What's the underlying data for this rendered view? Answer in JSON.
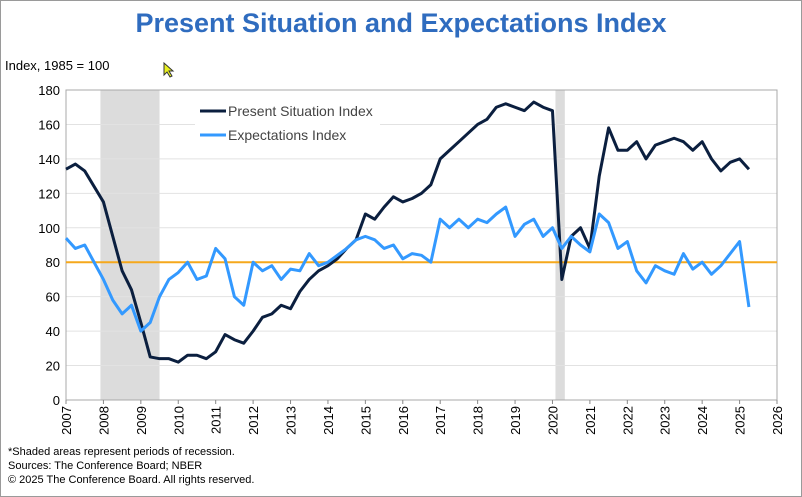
{
  "chart_data": {
    "type": "line",
    "title": "Present Situation and Expectations Index",
    "ylabel": "Index, 1985 = 100",
    "xlabel": "",
    "ylim": [
      0,
      180
    ],
    "yticks": [
      0,
      20,
      40,
      60,
      80,
      100,
      120,
      140,
      160,
      180
    ],
    "xlim": [
      2007,
      2026
    ],
    "xticks": [
      "2007",
      "2008",
      "2009",
      "2010",
      "2011",
      "2012",
      "2013",
      "2014",
      "2015",
      "2016",
      "2017",
      "2018",
      "2019",
      "2020",
      "2021",
      "2022",
      "2023",
      "2024",
      "2025",
      "2026"
    ],
    "grid": true,
    "legend_placement": "top-center",
    "reference_line": {
      "value": 80,
      "color": "#f5a81c"
    },
    "recessions": [
      [
        2007.92,
        2009.5
      ],
      [
        2020.08,
        2020.33
      ]
    ],
    "x": [
      2007,
      2007.25,
      2007.5,
      2007.75,
      2008,
      2008.25,
      2008.5,
      2008.75,
      2009,
      2009.25,
      2009.5,
      2009.75,
      2010,
      2010.25,
      2010.5,
      2010.75,
      2011,
      2011.25,
      2011.5,
      2011.75,
      2012,
      2012.25,
      2012.5,
      2012.75,
      2013,
      2013.25,
      2013.5,
      2013.75,
      2014,
      2014.25,
      2014.5,
      2014.75,
      2015,
      2015.25,
      2015.5,
      2015.75,
      2016,
      2016.25,
      2016.5,
      2016.75,
      2017,
      2017.25,
      2017.5,
      2017.75,
      2018,
      2018.25,
      2018.5,
      2018.75,
      2019,
      2019.25,
      2019.5,
      2019.75,
      2020,
      2020.25,
      2020.5,
      2020.75,
      2021,
      2021.25,
      2021.5,
      2021.75,
      2022,
      2022.25,
      2022.5,
      2022.75,
      2023,
      2023.25,
      2023.5,
      2023.75,
      2024,
      2024.25,
      2024.5,
      2024.75,
      2025,
      2025.25
    ],
    "series": [
      {
        "name": "Present Situation Index",
        "color": "#0b1f3f",
        "values": [
          134,
          137,
          133,
          124,
          115,
          95,
          75,
          64,
          45,
          25,
          24,
          24,
          22,
          26,
          26,
          24,
          28,
          38,
          35,
          33,
          40,
          48,
          50,
          55,
          53,
          63,
          70,
          75,
          78,
          82,
          88,
          93,
          108,
          105,
          112,
          118,
          115,
          117,
          120,
          125,
          140,
          145,
          150,
          155,
          160,
          163,
          170,
          172,
          170,
          168,
          173,
          170,
          168,
          70,
          95,
          100,
          88,
          130,
          158,
          145,
          145,
          150,
          140,
          148,
          150,
          152,
          150,
          145,
          150,
          140,
          133,
          138,
          140,
          134
        ]
      },
      {
        "name": "Expectations Index",
        "color": "#3399ff",
        "values": [
          94,
          88,
          90,
          80,
          70,
          58,
          50,
          55,
          40,
          45,
          60,
          70,
          74,
          80,
          70,
          72,
          88,
          82,
          60,
          55,
          80,
          75,
          78,
          70,
          76,
          75,
          85,
          78,
          80,
          84,
          88,
          93,
          95,
          93,
          88,
          90,
          82,
          85,
          84,
          80,
          105,
          100,
          105,
          100,
          105,
          103,
          108,
          112,
          95,
          102,
          105,
          95,
          100,
          88,
          95,
          90,
          86,
          108,
          103,
          88,
          92,
          75,
          68,
          78,
          75,
          73,
          85,
          76,
          80,
          73,
          78,
          85,
          92,
          54
        ]
      }
    ]
  },
  "footnotes": [
    "*Shaded areas represent periods of recession.",
    "Sources: The Conference Board;  NBER",
    "© 2025 The Conference Board. All rights reserved."
  ]
}
